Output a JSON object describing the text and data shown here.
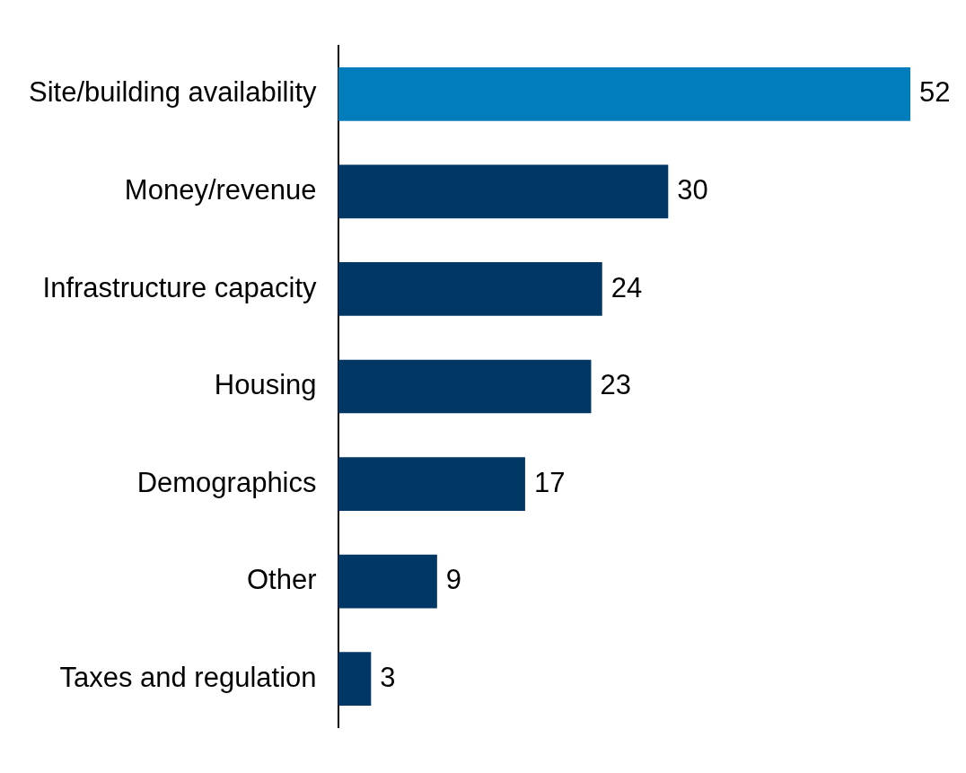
{
  "chart_data": {
    "type": "bar",
    "orientation": "horizontal",
    "categories": [
      "Site/building availability",
      "Money/revenue",
      "Infrastructure capacity",
      "Housing",
      "Demographics",
      "Other",
      "Taxes and regulation"
    ],
    "values": [
      52,
      30,
      24,
      23,
      17,
      9,
      3
    ],
    "colors": [
      "#007dba",
      "#003764",
      "#003764",
      "#003764",
      "#003764",
      "#003764",
      "#003764"
    ],
    "xlim": [
      0,
      52
    ],
    "data_labels": true,
    "tick_labels": "y",
    "grid": false,
    "legend": false
  }
}
